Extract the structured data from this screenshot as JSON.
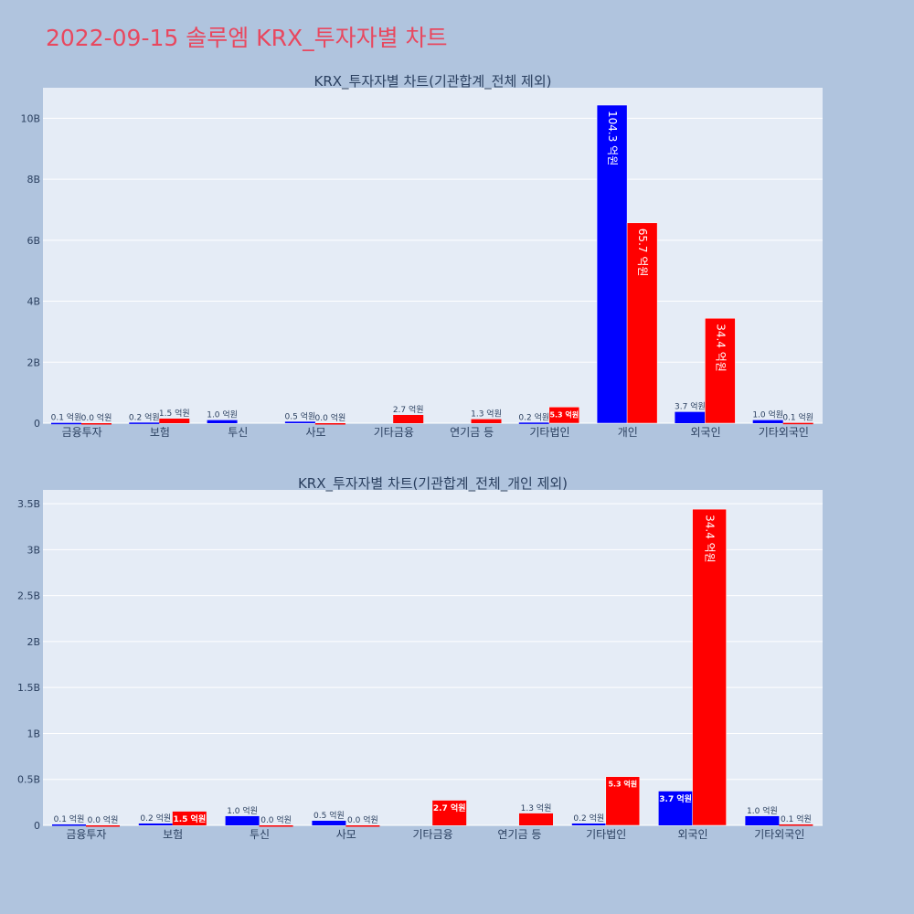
{
  "title": "2022-09-15 솔루엠 KRX_투자자별 차트",
  "colors": {
    "background": "#b0c4de",
    "plot_bg": "#e5ecf6",
    "series_a": "#0000ff",
    "series_b": "#ff0000",
    "title": "#e8485f",
    "text": "#2a3f5f"
  },
  "chart_data": [
    {
      "type": "bar",
      "title": "KRX_투자자별 차트(기관합계_전체 제외)",
      "categories": [
        "금융투자",
        "보험",
        "투신",
        "사모",
        "기타금융",
        "연기금 등",
        "기타법인",
        "개인",
        "외국인",
        "기타외국인"
      ],
      "ylim": [
        0,
        11000000000
      ],
      "yticks": [
        0,
        2000000000,
        4000000000,
        6000000000,
        8000000000,
        10000000000
      ],
      "ytick_labels": [
        "0",
        "2B",
        "4B",
        "6B",
        "8B",
        "10B"
      ],
      "grid": true,
      "series": [
        {
          "color": "#0000ff",
          "values": [
            10000000,
            20000000,
            100000000,
            50000000,
            null,
            null,
            20000000,
            10430000000,
            370000000,
            100000000
          ],
          "labels": [
            "0.1 억원",
            "0.2 억원",
            "1.0 억원",
            "0.5 억원",
            "",
            "",
            "0.2 억원",
            "104.3 억원",
            "3.7 억원",
            "1.0 억원"
          ]
        },
        {
          "color": "#ff0000",
          "values": [
            0,
            150000000,
            null,
            0,
            270000000,
            130000000,
            530000000,
            6570000000,
            3440000000,
            10000000
          ],
          "labels": [
            "0.0 억원",
            "1.5 억원",
            "",
            "0.0 억원",
            "2.7 억원",
            "1.3 억원",
            "5.3 억원",
            "65.7 억원",
            "34.4 억원",
            "0.1 억원"
          ]
        }
      ]
    },
    {
      "type": "bar",
      "title": "KRX_투자자별 차트(기관합계_전체_개인 제외)",
      "categories": [
        "금융투자",
        "보험",
        "투신",
        "사모",
        "기타금융",
        "연기금 등",
        "기타법인",
        "외국인",
        "기타외국인"
      ],
      "ylim": [
        0,
        3650000000
      ],
      "yticks": [
        0,
        500000000,
        1000000000,
        1500000000,
        2000000000,
        2500000000,
        3000000000,
        3500000000
      ],
      "ytick_labels": [
        "0",
        "0.5B",
        "1B",
        "1.5B",
        "2B",
        "2.5B",
        "3B",
        "3.5B"
      ],
      "grid": true,
      "series": [
        {
          "color": "#0000ff",
          "values": [
            10000000,
            20000000,
            100000000,
            50000000,
            null,
            null,
            20000000,
            370000000,
            100000000
          ],
          "labels": [
            "0.1 억원",
            "0.2 억원",
            "1.0 억원",
            "0.5 억원",
            "",
            "",
            "0.2 억원",
            "3.7 억원",
            "1.0 억원"
          ]
        },
        {
          "color": "#ff0000",
          "values": [
            0,
            150000000,
            0,
            0,
            270000000,
            130000000,
            530000000,
            3440000000,
            10000000
          ],
          "labels": [
            "0.0 억원",
            "1.5 억원",
            "0.0 억원",
            "0.0 억원",
            "2.7 억원",
            "1.3 억원",
            "5.3 억원",
            "34.4 억원",
            "0.1 억원"
          ]
        }
      ]
    }
  ]
}
